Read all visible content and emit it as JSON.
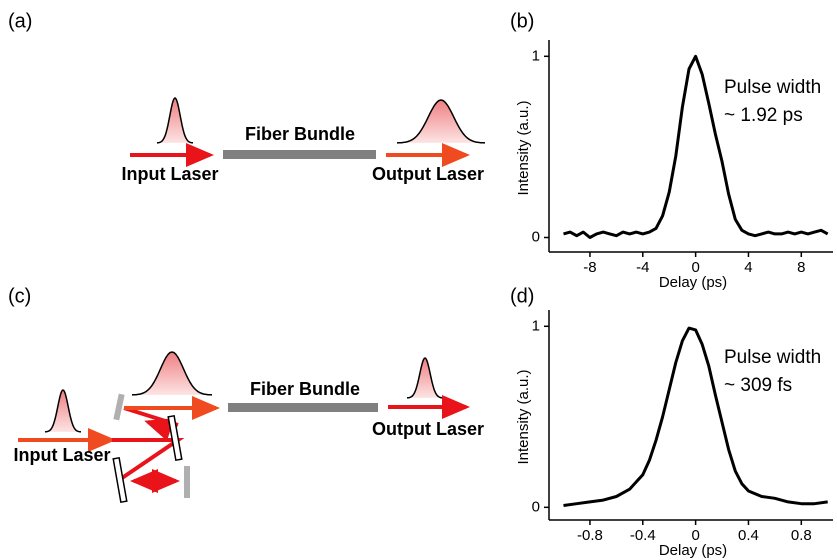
{
  "diagram_a": {
    "panel_label": "(a)",
    "fiber_label": "Fiber Bundle",
    "input_label": "Input Laser",
    "output_label": "Output Laser"
  },
  "diagram_c": {
    "panel_label": "(c)",
    "fiber_label": "Fiber Bundle",
    "input_label": "Input Laser",
    "output_label": "Output Laser"
  },
  "chart_data": [
    {
      "type": "line",
      "panel_label": "(b)",
      "x_label": "Delay (ps)",
      "y_label": "Intensity (a.u.)",
      "annotations": [
        "Pulse width",
        "~ 1.92 ps"
      ],
      "color": "#000000",
      "x": [
        -10,
        -9.5,
        -9,
        -8.5,
        -8,
        -7.5,
        -7,
        -6.5,
        -6,
        -5.5,
        -5,
        -4.5,
        -4,
        -3.5,
        -3,
        -2.5,
        -2,
        -1.5,
        -1,
        -0.5,
        0,
        0.5,
        1,
        1.5,
        2,
        2.5,
        3,
        3.5,
        4,
        4.5,
        5,
        5.5,
        6,
        6.5,
        7,
        7.5,
        8,
        8.5,
        9,
        9.5,
        10
      ],
      "values": [
        0.02,
        0.03,
        0.01,
        0.03,
        0.0,
        0.02,
        0.03,
        0.02,
        0.01,
        0.03,
        0.02,
        0.03,
        0.02,
        0.03,
        0.05,
        0.12,
        0.25,
        0.45,
        0.72,
        0.93,
        1.0,
        0.9,
        0.74,
        0.57,
        0.42,
        0.24,
        0.1,
        0.04,
        0.02,
        0.01,
        0.02,
        0.03,
        0.02,
        0.02,
        0.03,
        0.02,
        0.03,
        0.02,
        0.03,
        0.04,
        0.02
      ],
      "xlim": [
        -11.1,
        10.4
      ],
      "ylim": [
        -0.08,
        1.09
      ],
      "xticks": [
        -8,
        -4,
        0,
        4,
        8
      ],
      "yticks": [
        0,
        1
      ]
    },
    {
      "type": "line",
      "panel_label": "(d)",
      "x_label": "Delay (ps)",
      "y_label": "Intensity (a.u.)",
      "annotations": [
        "Pulse width",
        "~ 309 fs"
      ],
      "color": "#000000",
      "x": [
        -1,
        -0.9,
        -0.8,
        -0.7,
        -0.6,
        -0.5,
        -0.4,
        -0.35,
        -0.3,
        -0.25,
        -0.2,
        -0.15,
        -0.1,
        -0.05,
        0,
        0.05,
        0.1,
        0.15,
        0.2,
        0.25,
        0.3,
        0.35,
        0.4,
        0.5,
        0.6,
        0.7,
        0.8,
        0.9,
        1.0
      ],
      "values": [
        0.01,
        0.02,
        0.03,
        0.04,
        0.06,
        0.1,
        0.18,
        0.26,
        0.37,
        0.5,
        0.65,
        0.8,
        0.92,
        0.99,
        0.98,
        0.9,
        0.78,
        0.62,
        0.47,
        0.32,
        0.2,
        0.13,
        0.09,
        0.06,
        0.05,
        0.03,
        0.02,
        0.02,
        0.03
      ],
      "xlim": [
        -1.11,
        1.04
      ],
      "ylim": [
        -0.07,
        1.09
      ],
      "xticks": [
        -0.8,
        -0.4,
        0,
        0.4,
        0.8
      ],
      "yticks": [
        0,
        1
      ]
    }
  ]
}
